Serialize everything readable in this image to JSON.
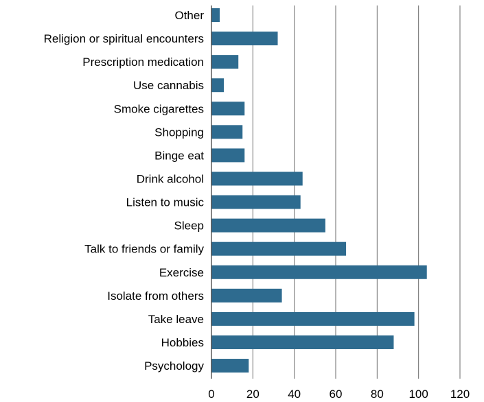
{
  "chart_data": {
    "type": "bar",
    "orientation": "horizontal",
    "categories": [
      "Other",
      "Religion or spiritual encounters",
      "Prescription medication",
      "Use cannabis",
      "Smoke cigarettes",
      "Shopping",
      "Binge eat",
      "Drink alcohol",
      "Listen to music",
      "Sleep",
      "Talk to friends or family",
      "Exercise",
      "Isolate from others",
      "Take leave",
      "Hobbies",
      "Psychology"
    ],
    "values": [
      4,
      32,
      13,
      6,
      16,
      15,
      16,
      44,
      43,
      55,
      65,
      104,
      34,
      98,
      88,
      18
    ],
    "xlim": [
      0,
      120
    ],
    "xticks": [
      "0",
      "20",
      "40",
      "60",
      "80",
      "100",
      "120"
    ],
    "grid": "vertical",
    "bar_color": "#2e6b8f",
    "title": "",
    "xlabel": "",
    "ylabel": ""
  }
}
